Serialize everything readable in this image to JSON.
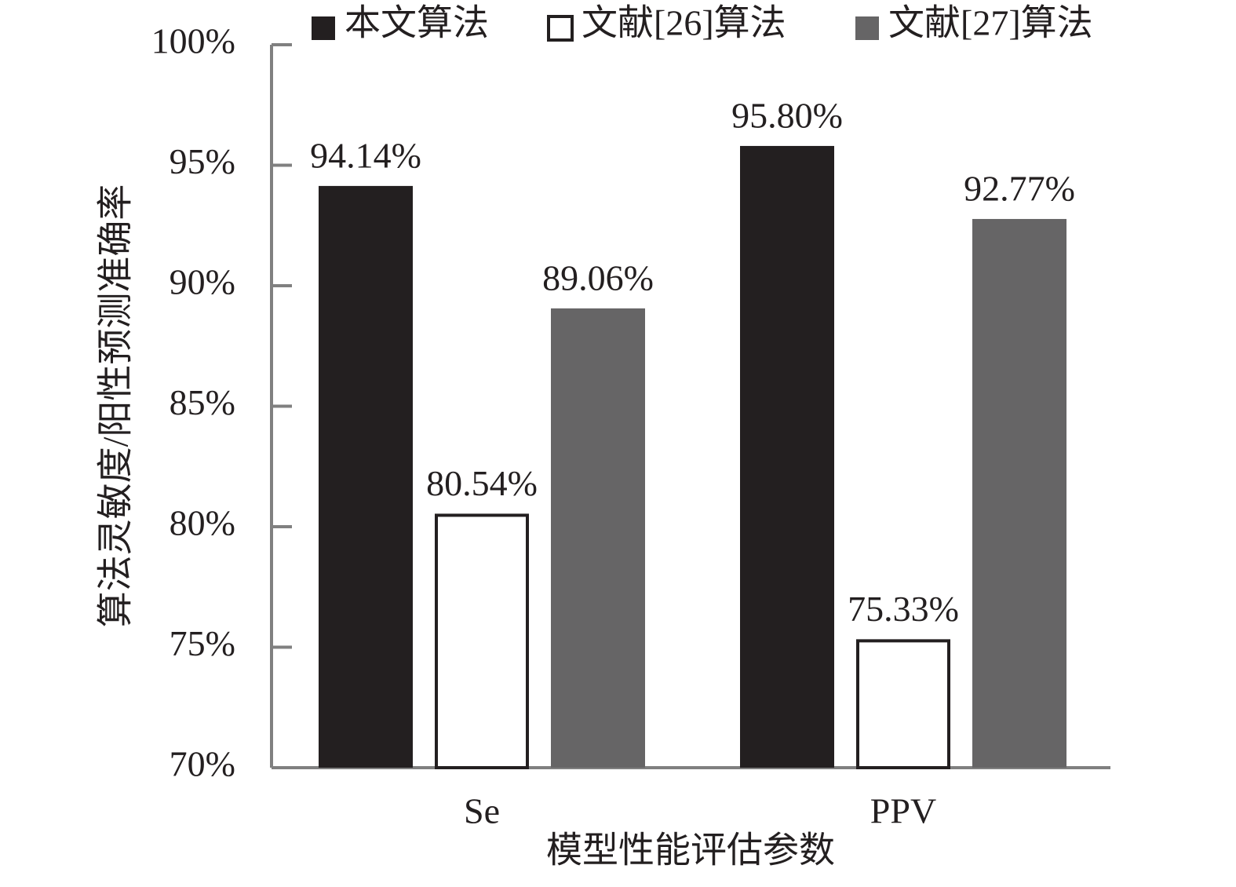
{
  "chart_data": {
    "type": "bar",
    "categories": [
      "Se",
      "PPV"
    ],
    "series": [
      {
        "name": "本文算法",
        "color": "#231f20",
        "values": [
          94.14,
          95.8
        ],
        "value_labels": [
          "94.14%",
          "95.80%"
        ]
      },
      {
        "name": "文献[26]算法",
        "color": "#ffffff",
        "values": [
          80.54,
          75.33
        ],
        "value_labels": [
          "80.54%",
          "75.33%"
        ]
      },
      {
        "name": "文献[27]算法",
        "color": "#666566",
        "values": [
          89.06,
          92.77
        ],
        "value_labels": [
          "89.06%",
          "92.77%"
        ]
      }
    ],
    "xlabel": "模型性能评估参数",
    "ylabel": "算法灵敏度/阳性预测准确率",
    "ylim": [
      70,
      100
    ],
    "yticks": [
      {
        "value": 70,
        "label": "70%"
      },
      {
        "value": 75,
        "label": "75%"
      },
      {
        "value": 80,
        "label": "80%"
      },
      {
        "value": 85,
        "label": "85%"
      },
      {
        "value": 90,
        "label": "90%"
      },
      {
        "value": 95,
        "label": "95%"
      },
      {
        "value": 100,
        "label": "100%"
      }
    ],
    "legend": "top"
  }
}
